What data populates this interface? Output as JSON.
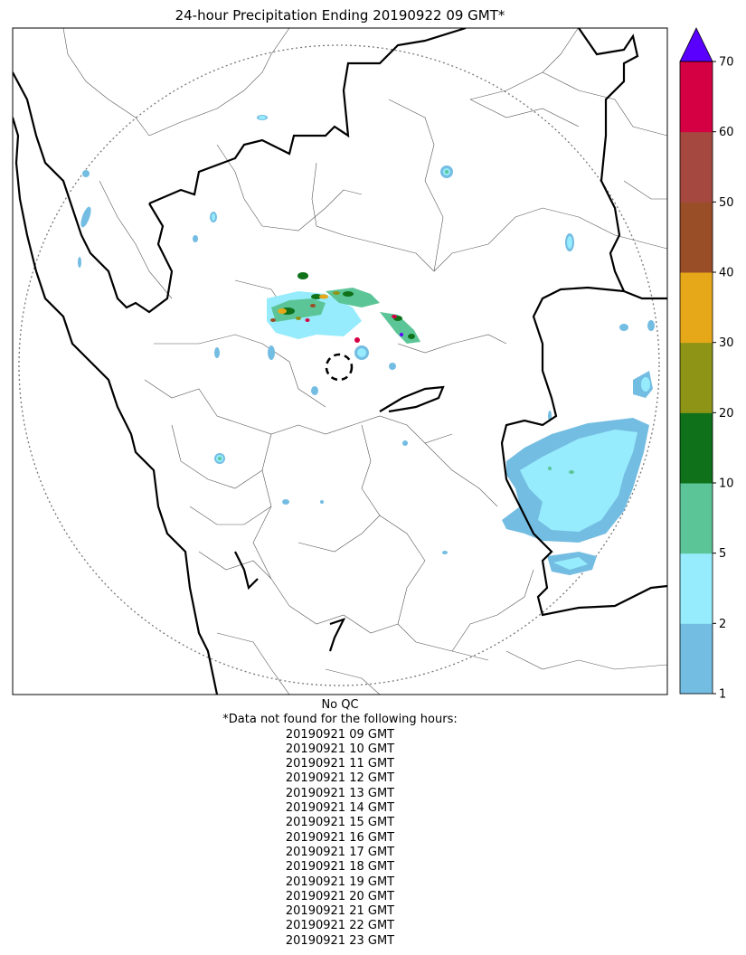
{
  "title": "24-hour Precipitation Ending 20190922 09 GMT*",
  "colorbar": {
    "ticks": [
      "1",
      "2",
      "5",
      "10",
      "20",
      "30",
      "40",
      "50",
      "60",
      "70"
    ],
    "colors": [
      "#74bde2",
      "#96ecfc",
      "#5cc598",
      "#0f7119",
      "#8e9416",
      "#e6a819",
      "#9a4e27",
      "#a54940",
      "#d50043"
    ],
    "extend_color": "#5a00ff"
  },
  "notes": {
    "qc": "No QC",
    "missing_header": "*Data not found for the following hours:",
    "missing_hours": [
      "20190921 09 GMT",
      "20190921 10 GMT",
      "20190921 11 GMT",
      "20190921 12 GMT",
      "20190921 13 GMT",
      "20190921 14 GMT",
      "20190921 15 GMT",
      "20190921 16 GMT",
      "20190921 17 GMT",
      "20190921 18 GMT",
      "20190921 19 GMT",
      "20190921 20 GMT",
      "20190921 21 GMT",
      "20190921 22 GMT",
      "20190921 23 GMT"
    ]
  }
}
